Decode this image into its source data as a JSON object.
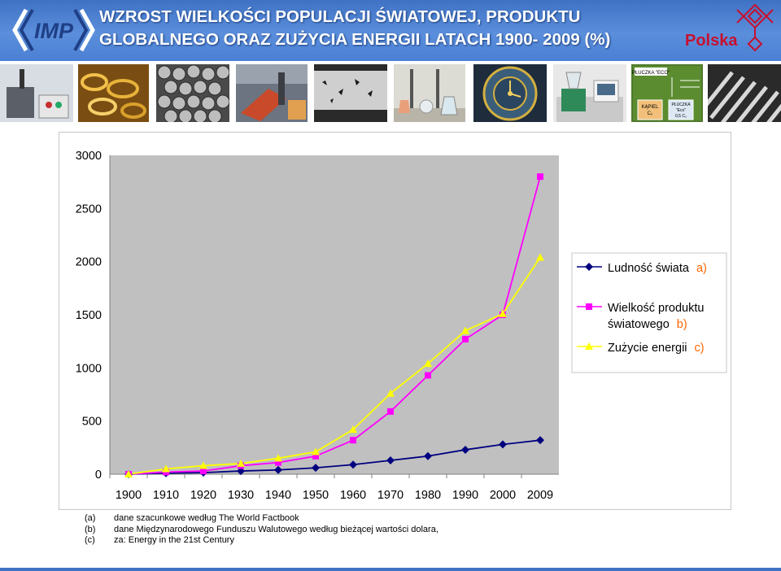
{
  "header": {
    "logo_text": "IMP",
    "title_line1": "WZROST WIELKOŚCI POPULACJI ŚWIATOWEJ, PRODUKTU",
    "title_line2": "GLOBALNEGO ORAZ ZUŻYCIA ENERGII LATACH 1900- 2009 (%)",
    "polska_text": "Polska",
    "colors": {
      "header_blue": "#4a7fd3",
      "title_text": "#ffffff",
      "polska_red": "#c8102e"
    }
  },
  "photos": {
    "items": [
      "laboratory-equipment",
      "brass-spirals",
      "metal-balls",
      "steel-mill",
      "micrograph",
      "lab-glassware",
      "clock-machinery",
      "laboratory-instrument",
      "lab-computer",
      "plating-diagram",
      "ridged-surface"
    ],
    "diagram_labels": {
      "top": "PŁUCZKA \"ECO\"",
      "bath": "KĄPIEL",
      "bath_sub": "C₀",
      "rinse": "PŁUCZKA",
      "rinse_sub1": "\"Eco\"",
      "rinse_sub2": "0,5 C₀"
    }
  },
  "chart_data": {
    "type": "line",
    "x": [
      1900,
      1910,
      1920,
      1930,
      1940,
      1950,
      1960,
      1970,
      1980,
      1990,
      2000,
      2009
    ],
    "categories": [
      "1900",
      "1910",
      "1920",
      "1930",
      "1940",
      "1950",
      "1960",
      "1970",
      "1980",
      "1990",
      "2000",
      "2009"
    ],
    "ylim": [
      0,
      3000
    ],
    "yticks": [
      "0",
      "500",
      "1000",
      "1500",
      "2000",
      "2500",
      "3000"
    ],
    "grid": false,
    "legend_position": "right",
    "series": [
      {
        "name": "Ludność świata",
        "label_suffix": "a)",
        "marker": "diamond",
        "color": "#000080",
        "values": [
          0,
          10,
          15,
          30,
          40,
          60,
          90,
          130,
          170,
          230,
          280,
          320
        ]
      },
      {
        "name": "Wielkość produktu światowego",
        "name_line1": "Wielkość produktu",
        "name_line2": "światowego",
        "label_suffix": "b)",
        "marker": "square",
        "color": "#ff00ff",
        "values": [
          0,
          20,
          30,
          80,
          110,
          170,
          320,
          590,
          930,
          1270,
          1500,
          2800
        ]
      },
      {
        "name": "Zużycie energii",
        "label_suffix": "c)",
        "marker": "triangle",
        "color": "#ffff00",
        "values": [
          0,
          50,
          80,
          100,
          150,
          210,
          420,
          760,
          1040,
          1350,
          1510,
          2040
        ]
      }
    ],
    "label_suffix_color": "#ff6600"
  },
  "notes": [
    {
      "letter": "(a)",
      "text": "dane szacunkowe według The World Factbook"
    },
    {
      "letter": "(b)",
      "text": "dane Międzynarodowego Funduszu Walutowego według bieżącej wartości dolara,"
    },
    {
      "letter": "(c)",
      "text": "za: Energy in the 21st Century"
    }
  ]
}
